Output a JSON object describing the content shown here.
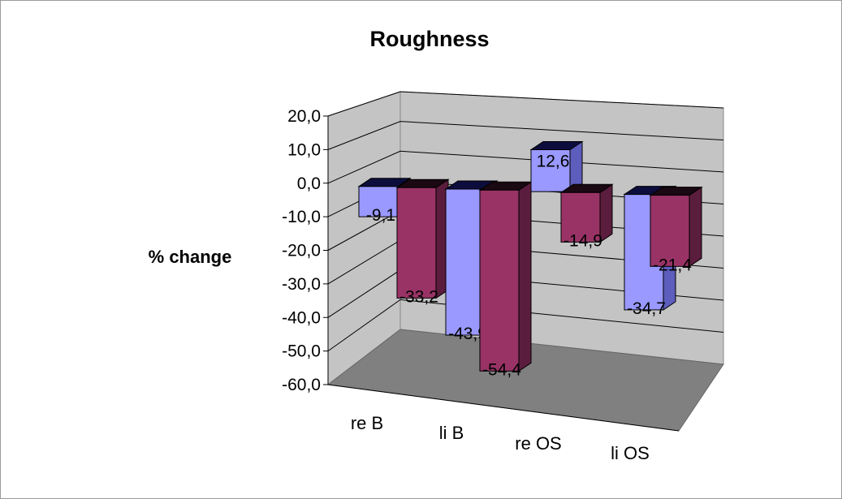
{
  "chart_data": {
    "type": "bar",
    "title": "Roughness",
    "ylabel": "% change",
    "xlabel": "",
    "ylim": [
      -60,
      20
    ],
    "yticks": [
      "20,0",
      "10,0",
      "0,0",
      "-10,0",
      "-20,0",
      "-30,0",
      "-40,0",
      "-50,0",
      "-60,0"
    ],
    "categories": [
      "re B",
      "li B",
      "re OS",
      "li OS"
    ],
    "grid": true,
    "legend": "none",
    "series": [
      {
        "values": [
          -9.1,
          -43.9,
          12.6,
          -34.7
        ],
        "labels": [
          "-9,1",
          "-43,9",
          "12,6",
          "-34,7"
        ],
        "colors": {
          "front": "#9999ff",
          "side": "#5d5dbd",
          "top": "#0d0d3d"
        }
      },
      {
        "values": [
          -33.2,
          -54.4,
          -14.9,
          -21.4
        ],
        "labels": [
          "-33,2",
          "-54,4",
          "-14,9",
          "-21,4"
        ],
        "colors": {
          "front": "#993366",
          "side": "#5b1d3d",
          "top": "#1a0812"
        }
      }
    ]
  }
}
